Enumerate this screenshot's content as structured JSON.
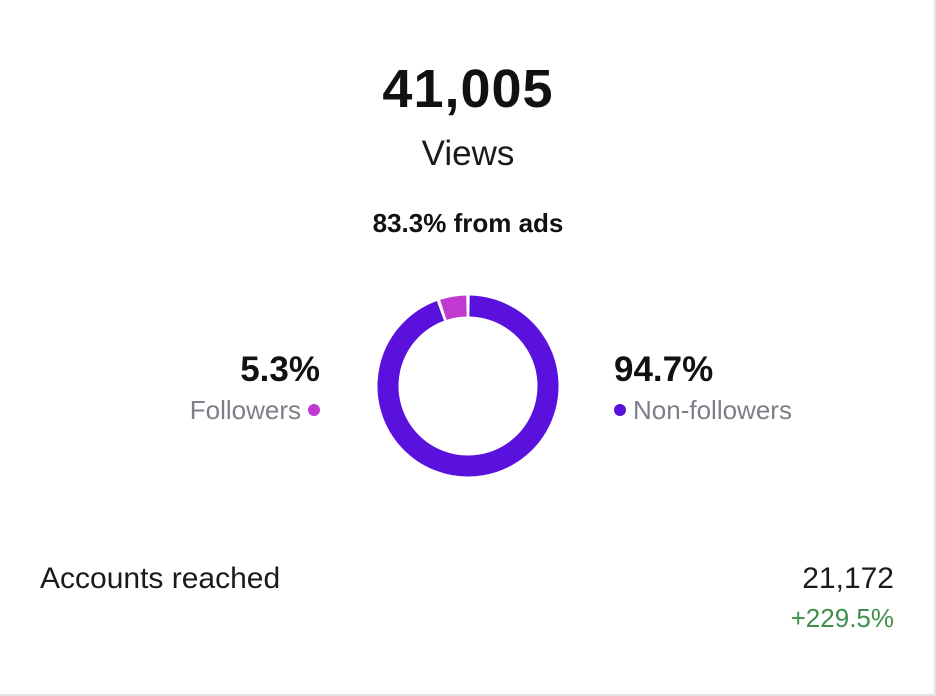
{
  "views": {
    "count": "41,005",
    "label": "Views",
    "ads_text": "83.3% from ads"
  },
  "audience": {
    "followers": {
      "percent_label": "5.3%",
      "label": "Followers",
      "fraction": 0.053,
      "color": "#c03ad1"
    },
    "non_followers": {
      "percent_label": "94.7%",
      "label": "Non-followers",
      "fraction": 0.947,
      "color": "#5a11dd"
    }
  },
  "accounts_reached": {
    "label": "Accounts reached",
    "value": "21,172",
    "change": "+229.5%",
    "change_color": "#3f8f4d"
  },
  "colors": {
    "text_primary": "#111111",
    "text_secondary": "#7b7f87",
    "background": "#ffffff"
  }
}
